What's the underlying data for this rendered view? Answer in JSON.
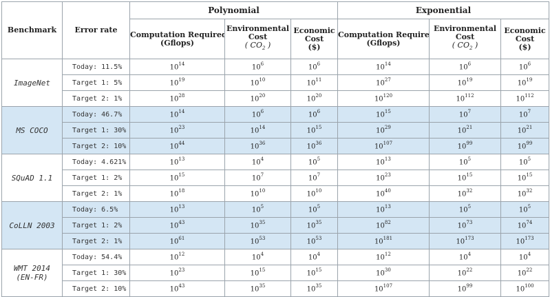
{
  "header": {
    "benchmark": "Benchmark",
    "error_rate": "Error rate",
    "polynomial": "Polynomial",
    "exponential": "Exponential",
    "cols": [
      {
        "l1": "Computation Required",
        "l2": "(Gflops)"
      },
      {
        "l1": "Environmental",
        "l2": "Cost",
        "l3": "( CO",
        "l3sub": "2",
        "l3end": " )"
      },
      {
        "l1": "Economic",
        "l2": "Cost",
        "l3": "($)"
      }
    ]
  },
  "groups": [
    {
      "name": "ImageNet",
      "shaded": false,
      "rows": [
        {
          "err": "Today: 11.5%",
          "vals": [
            "14",
            "6",
            "6",
            "14",
            "6",
            "6"
          ]
        },
        {
          "err": "Target 1: 5%",
          "vals": [
            "19",
            "10",
            "11",
            "27",
            "19",
            "19"
          ]
        },
        {
          "err": "Target 2: 1%",
          "vals": [
            "28",
            "20",
            "20",
            "120",
            "112",
            "112"
          ]
        }
      ]
    },
    {
      "name": "MS COCO",
      "shaded": true,
      "rows": [
        {
          "err": "Today: 46.7%",
          "vals": [
            "14",
            "6",
            "6",
            "15",
            "7",
            "7"
          ]
        },
        {
          "err": "Target 1: 30%",
          "vals": [
            "23",
            "14",
            "15",
            "29",
            "21",
            "21"
          ]
        },
        {
          "err": "Target 2: 10%",
          "vals": [
            "44",
            "36",
            "36",
            "107",
            "99",
            "99"
          ]
        }
      ]
    },
    {
      "name": "SQuAD 1.1",
      "shaded": false,
      "rows": [
        {
          "err": "Today: 4.621%",
          "vals": [
            "13",
            "4",
            "5",
            "13",
            "5",
            "5"
          ]
        },
        {
          "err": "Target 1: 2%",
          "vals": [
            "15",
            "7",
            "7",
            "23",
            "15",
            "15"
          ]
        },
        {
          "err": "Target 2: 1%",
          "vals": [
            "18",
            "10",
            "10",
            "40",
            "32",
            "32"
          ]
        }
      ]
    },
    {
      "name": "CoLLN 2003",
      "shaded": true,
      "rows": [
        {
          "err": "Today: 6.5%",
          "vals": [
            "13",
            "5",
            "5",
            "13",
            "5",
            "5"
          ]
        },
        {
          "err": "Target 1: 2%",
          "vals": [
            "43",
            "35",
            "35",
            "82",
            "73",
            "74"
          ]
        },
        {
          "err": "Target 2: 1%",
          "vals": [
            "61",
            "53",
            "53",
            "181",
            "173",
            "173"
          ]
        }
      ]
    },
    {
      "name": "WMT 2014",
      "name2": "(EN-FR)",
      "shaded": false,
      "rows": [
        {
          "err": "Today: 54.4%",
          "vals": [
            "12",
            "4",
            "4",
            "12",
            "4",
            "4"
          ]
        },
        {
          "err": "Target 1: 30%",
          "vals": [
            "23",
            "15",
            "15",
            "30",
            "22",
            "22"
          ]
        },
        {
          "err": "Target 2: 10%",
          "vals": [
            "43",
            "35",
            "35",
            "107",
            "99",
            "100"
          ]
        }
      ]
    }
  ],
  "base": "10"
}
